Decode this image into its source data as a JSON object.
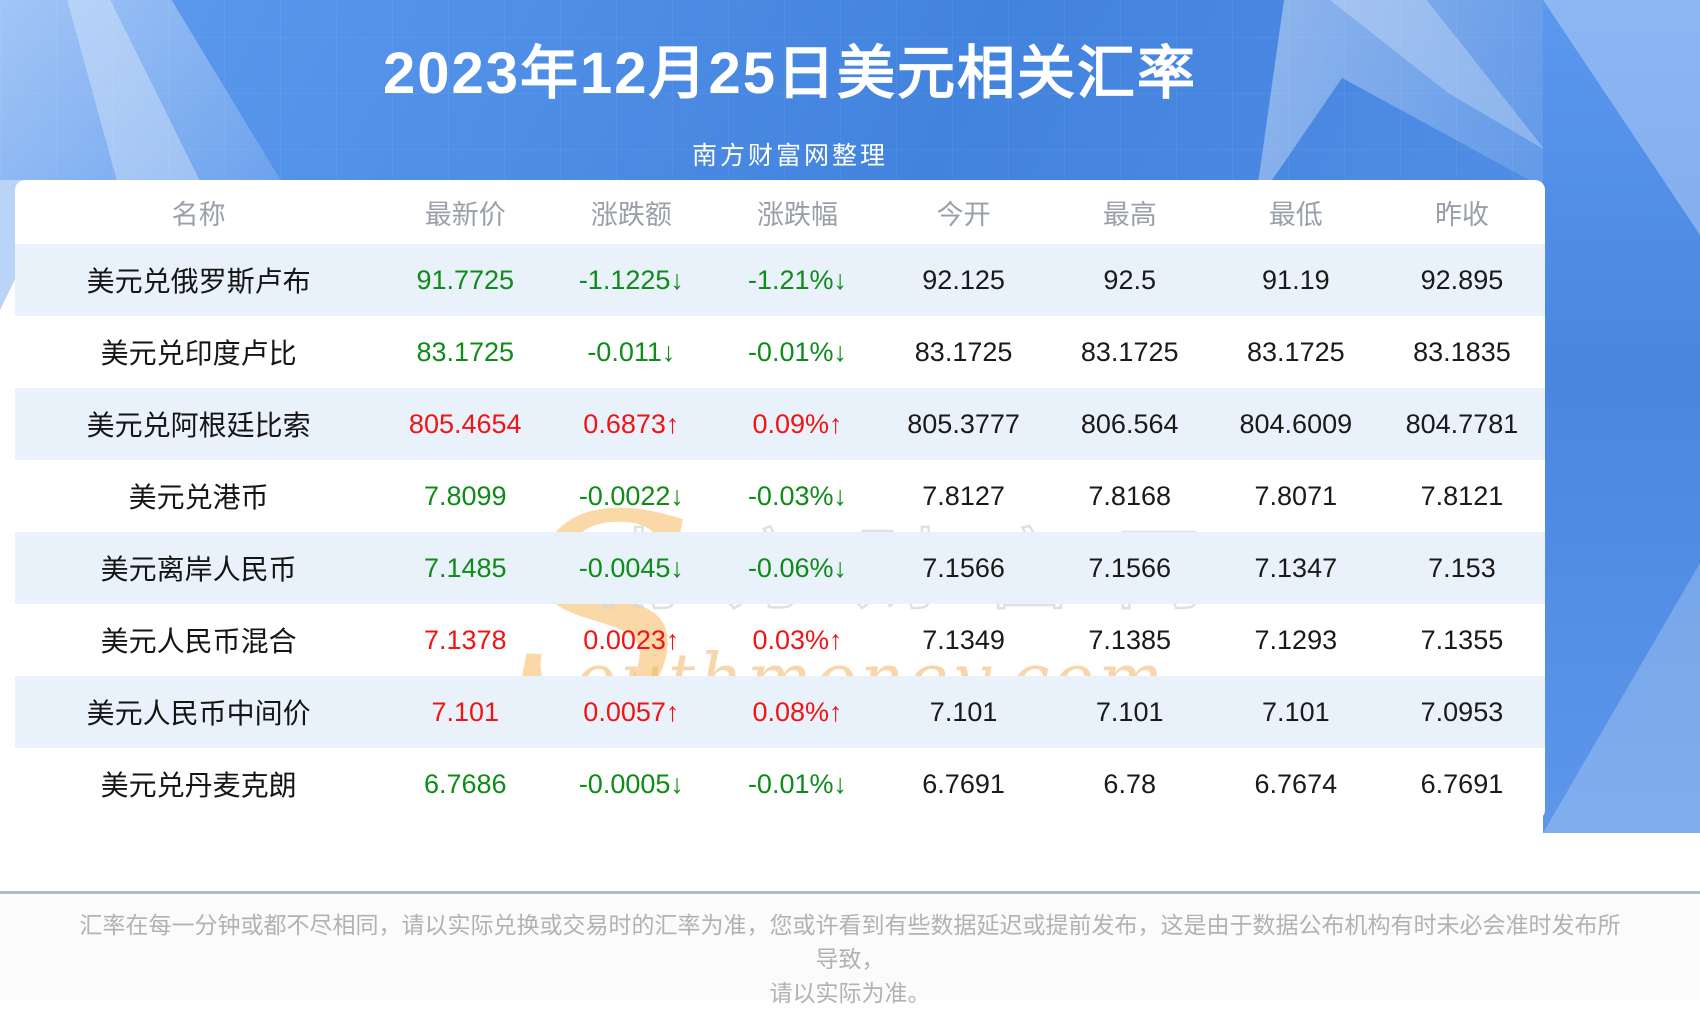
{
  "page": {
    "title": "2023年12月25日美元相关汇率",
    "subtitle": "南方财富网整理"
  },
  "chart_data": {
    "type": "table",
    "title": "2023年12月25日美元相关汇率",
    "columns": [
      "名称",
      "最新价",
      "涨跌额",
      "涨跌幅",
      "今开",
      "最高",
      "最低",
      "昨收"
    ],
    "rows": [
      {
        "name": "美元兑俄罗斯卢布",
        "latest": "91.7725",
        "change": "-1.1225↓",
        "change_pct": "-1.21%↓",
        "open": "92.125",
        "high": "92.5",
        "low": "91.19",
        "prev_close": "92.895",
        "trend": "down"
      },
      {
        "name": "美元兑印度卢比",
        "latest": "83.1725",
        "change": "-0.011↓",
        "change_pct": "-0.01%↓",
        "open": "83.1725",
        "high": "83.1725",
        "low": "83.1725",
        "prev_close": "83.1835",
        "trend": "down"
      },
      {
        "name": "美元兑阿根廷比索",
        "latest": "805.4654",
        "change": "0.6873↑",
        "change_pct": "0.09%↑",
        "open": "805.3777",
        "high": "806.564",
        "low": "804.6009",
        "prev_close": "804.7781",
        "trend": "up"
      },
      {
        "name": "美元兑港币",
        "latest": "7.8099",
        "change": "-0.0022↓",
        "change_pct": "-0.03%↓",
        "open": "7.8127",
        "high": "7.8168",
        "low": "7.8071",
        "prev_close": "7.8121",
        "trend": "down"
      },
      {
        "name": "美元离岸人民币",
        "latest": "7.1485",
        "change": "-0.0045↓",
        "change_pct": "-0.06%↓",
        "open": "7.1566",
        "high": "7.1566",
        "low": "7.1347",
        "prev_close": "7.153",
        "trend": "down"
      },
      {
        "name": "美元人民币混合",
        "latest": "7.1378",
        "change": "0.0023↑",
        "change_pct": "0.03%↑",
        "open": "7.1349",
        "high": "7.1385",
        "low": "7.1293",
        "prev_close": "7.1355",
        "trend": "up"
      },
      {
        "name": "美元人民币中间价",
        "latest": "7.101",
        "change": "0.0057↑",
        "change_pct": "0.08%↑",
        "open": "7.101",
        "high": "7.101",
        "low": "7.101",
        "prev_close": "7.0953",
        "trend": "up"
      },
      {
        "name": "美元兑丹麦克朗",
        "latest": "6.7686",
        "change": "-0.0005↓",
        "change_pct": "-0.01%↓",
        "open": "6.7691",
        "high": "6.78",
        "low": "6.7674",
        "prev_close": "6.7691",
        "trend": "down"
      }
    ]
  },
  "watermark": {
    "initial": "S",
    "cn": "南方财富网",
    "en": "outhmoney.com"
  },
  "footer": {
    "line1": "汇率在每一分钟或都不尽相同，请以实际兑换或交易时的汇率为准，您或许看到有些数据延迟或提前发布，这是由于数据公布机构有时未必会准时发布所导致，",
    "line2": "请以实际为准。"
  },
  "colors": {
    "accent_blue": "#4584e0",
    "up_red": "#f01414",
    "down_green": "#0e8c17",
    "alt_row_blue": "#e9f1fb",
    "header_gray": "#9aa0a8",
    "divider_blue_gray": "#a9becf",
    "watermark_orange": "#f5a93f"
  }
}
